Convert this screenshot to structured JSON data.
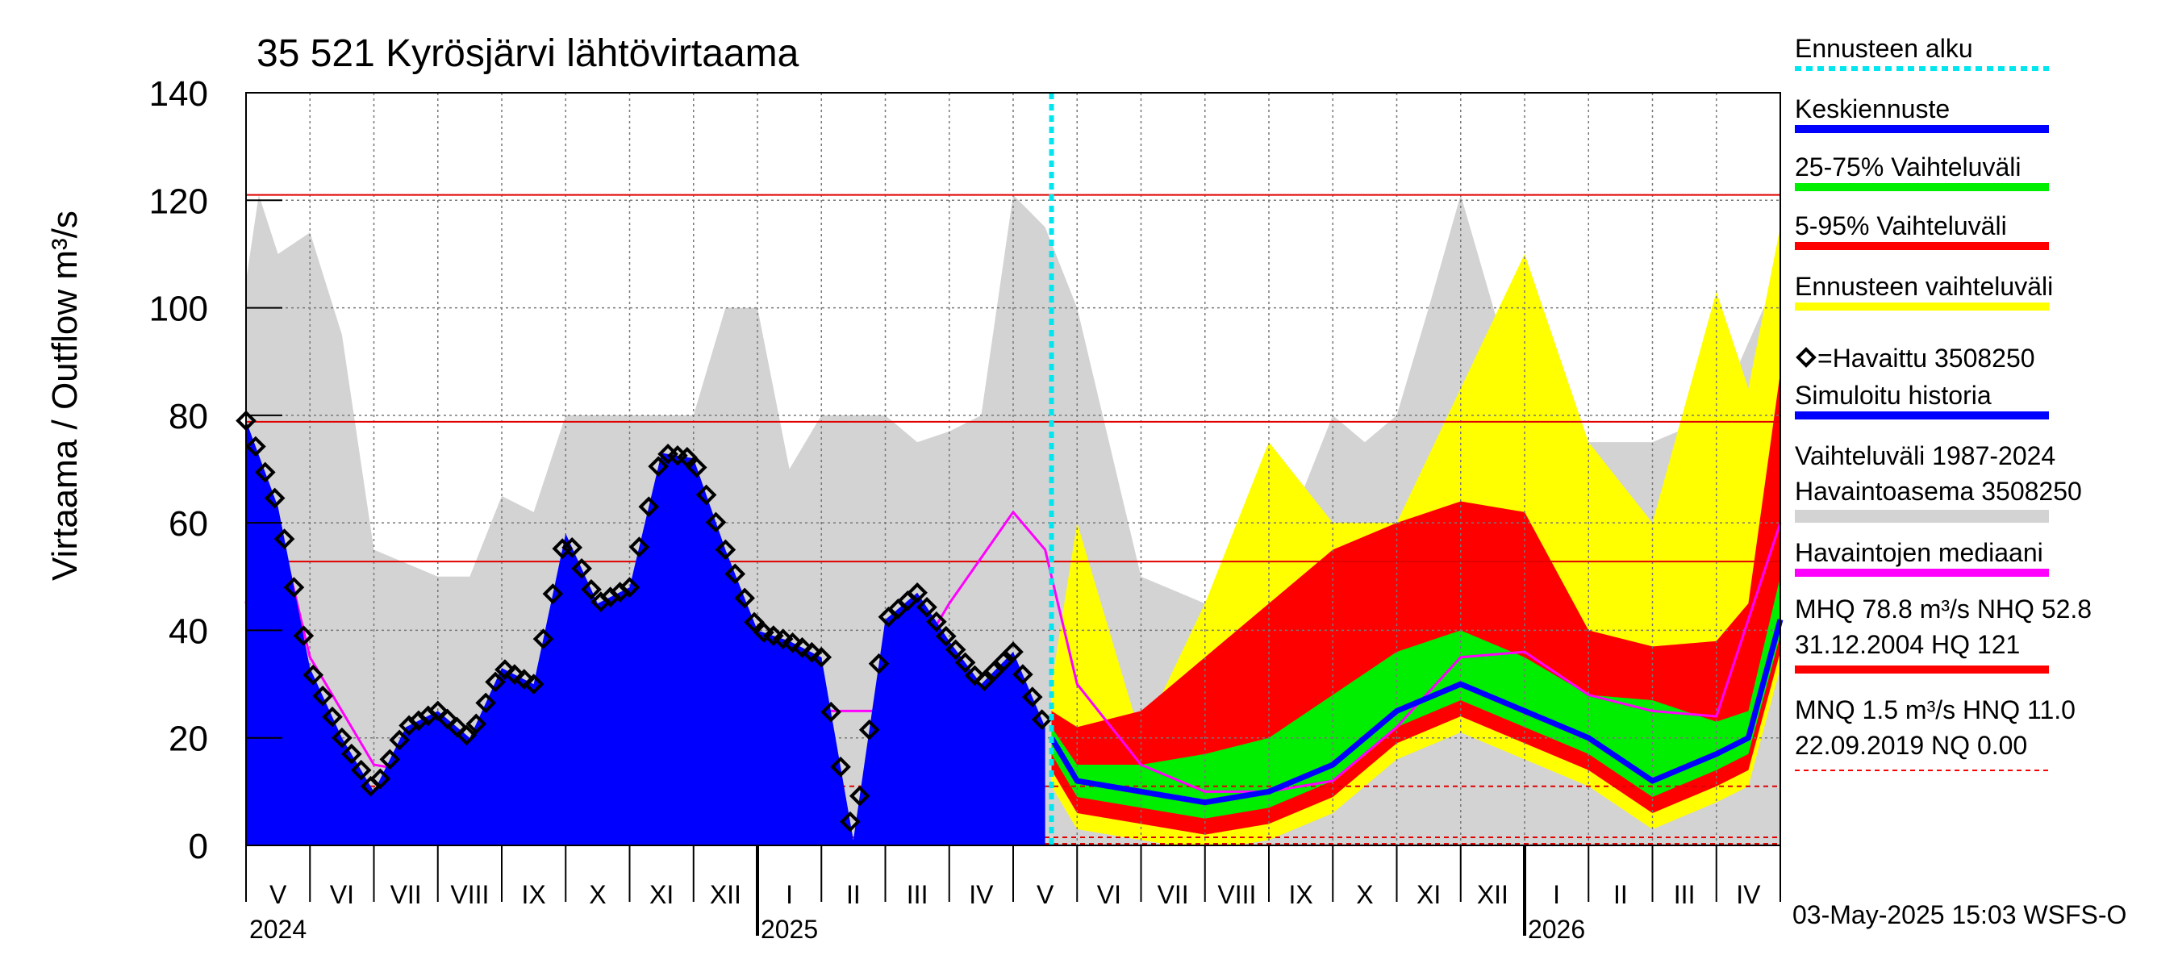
{
  "chart_data": {
    "type": "area",
    "title": "35 521 Kyrösjärvi lähtövirtaama",
    "ylabel": "Virtaama / Outflow    m³/s",
    "ylim": [
      0,
      140
    ],
    "yticks": [
      0,
      20,
      40,
      60,
      80,
      100,
      120,
      140
    ],
    "x_range": [
      "2024-04-15",
      "2026-05-01"
    ],
    "months": [
      "V",
      "VI",
      "VII",
      "VIII",
      "IX",
      "X",
      "XI",
      "XII",
      "I",
      "II",
      "III",
      "IV",
      "V",
      "VI",
      "VII",
      "VIII",
      "IX",
      "X",
      "XI",
      "XII",
      "I",
      "II",
      "III",
      "IV"
    ],
    "years": [
      "2024",
      "2025",
      "2026"
    ],
    "forecast_start": "2025-05-03",
    "reference_lines": {
      "MHQ": 78.8,
      "NHQ": 52.8,
      "HQ": 121,
      "MNQ": 1.5,
      "HNQ": 11.0,
      "NQ": 0.0
    },
    "series": [
      {
        "name": "Vaihteluväli 1987-2024 max",
        "x": [
          0,
          0.2,
          0.5,
          1,
          1.5,
          2,
          3,
          3.5,
          4,
          4.5,
          5,
          6,
          7,
          7.5,
          8,
          8.5,
          9,
          10,
          10.5,
          11,
          11.5,
          12,
          12.5,
          13,
          14,
          15,
          16,
          17,
          17.5,
          18,
          18.5,
          19,
          20,
          20.5,
          21,
          22,
          23,
          24
        ],
        "values": [
          105,
          121,
          110,
          114,
          95,
          55,
          50,
          50,
          65,
          62,
          80,
          80,
          80,
          100,
          100,
          70,
          80,
          80,
          75,
          77,
          80,
          121,
          115,
          100,
          50,
          45,
          50,
          80,
          75,
          80,
          100,
          121,
          80,
          70,
          75,
          75,
          80,
          107
        ]
      },
      {
        "name": "Vaihteluväli 1987-2024 min",
        "x": [
          0,
          6,
          12,
          18,
          24
        ],
        "values": [
          0,
          0,
          0,
          0,
          0
        ]
      },
      {
        "name": "Ennusteen vaihteluväli max",
        "x": [
          12.6,
          13,
          13.5,
          14,
          15,
          16,
          17,
          18,
          19,
          20,
          21,
          22,
          23,
          23.5,
          24
        ],
        "values": [
          30,
          60,
          40,
          20,
          45,
          75,
          60,
          60,
          85,
          110,
          75,
          60,
          103,
          85,
          115
        ]
      },
      {
        "name": "5-95% Vaihteluväli max",
        "x": [
          12.6,
          13,
          14,
          15,
          16,
          17,
          18,
          19,
          20,
          21,
          22,
          23,
          23.5,
          24
        ],
        "values": [
          25,
          22,
          25,
          35,
          45,
          55,
          60,
          64,
          62,
          40,
          37,
          38,
          45,
          88
        ]
      },
      {
        "name": "25-75% Vaihteluväli max",
        "x": [
          12.6,
          13,
          14,
          15,
          16,
          17,
          18,
          19,
          20,
          21,
          22,
          23,
          23.5,
          24
        ],
        "values": [
          22,
          15,
          15,
          17,
          20,
          28,
          36,
          40,
          35,
          28,
          27,
          23,
          25,
          50
        ]
      },
      {
        "name": "Keskiennuste",
        "x": [
          12.6,
          13,
          14,
          15,
          16,
          17,
          18,
          19,
          20,
          21,
          22,
          23,
          23.5,
          24
        ],
        "values": [
          20,
          12,
          10,
          8,
          10,
          15,
          25,
          30,
          25,
          20,
          12,
          17,
          20,
          42
        ]
      },
      {
        "name": "Havaintojen mediaani",
        "x": [
          0,
          0.2,
          0.5,
          1,
          2,
          3,
          4,
          5,
          5.5,
          6,
          7,
          8,
          9,
          10,
          11,
          12,
          12.5,
          13,
          14,
          15,
          16,
          17,
          18,
          19,
          20,
          21,
          22,
          23,
          24
        ],
        "values": [
          45,
          62,
          60,
          35,
          15,
          13,
          16,
          18,
          22,
          33,
          38,
          25,
          25,
          25,
          45,
          62,
          55,
          30,
          15,
          10,
          10,
          12,
          22,
          35,
          36,
          28,
          25,
          24,
          60
        ]
      },
      {
        "name": "Havaittu 3508250",
        "x": [
          0,
          0.5,
          1,
          1.5,
          2,
          2.5,
          3,
          3.5,
          4,
          4.5,
          5,
          5.5,
          6,
          6.5,
          7,
          7.5,
          8,
          8.5,
          9,
          9.5,
          10,
          10.5,
          11,
          11.5,
          12,
          12.5
        ],
        "values": [
          79,
          63,
          33,
          20,
          10,
          22,
          25,
          20,
          33,
          30,
          58,
          45,
          48,
          73,
          72,
          55,
          40,
          38,
          35,
          1,
          42,
          47,
          38,
          30,
          36,
          22
        ]
      }
    ],
    "legend": [
      {
        "label": "Ennusteen alku",
        "color": "#00e5ee",
        "style": "dotted"
      },
      {
        "label": "Keskiennuste",
        "color": "#0000ff",
        "style": "line"
      },
      {
        "label": "25-75% Vaihteluväli",
        "color": "#00ee00",
        "style": "line"
      },
      {
        "label": "5-95% Vaihteluväli",
        "color": "#ff0000",
        "style": "line"
      },
      {
        "label": "Ennusteen vaihteluväli",
        "color": "#ffff00",
        "style": "line"
      },
      {
        "label": "=Havaittu 3508250",
        "color": "#000000",
        "style": "diamond"
      },
      {
        "label": "Simuloitu historia",
        "color": "#0000ff",
        "style": "line"
      },
      {
        "label": "Vaihteluväli 1987-2024",
        "label2": " Havaintoasema 3508250",
        "color": "#d3d3d3",
        "style": "line"
      },
      {
        "label": "Havaintojen mediaani",
        "color": "#ff00ff",
        "style": "line"
      },
      {
        "label": "MHQ 78.8 m³/s NHQ 52.8",
        "label2": "31.12.2004 HQ  121",
        "color": "#ff0000",
        "style": "line"
      },
      {
        "label": "MNQ  1.5 m³/s HNQ 11.0",
        "label2": "22.09.2019 NQ 0.00",
        "color": "#ff0000",
        "style": "dashed"
      }
    ],
    "footer": "03-May-2025 15:03 WSFS-O"
  }
}
